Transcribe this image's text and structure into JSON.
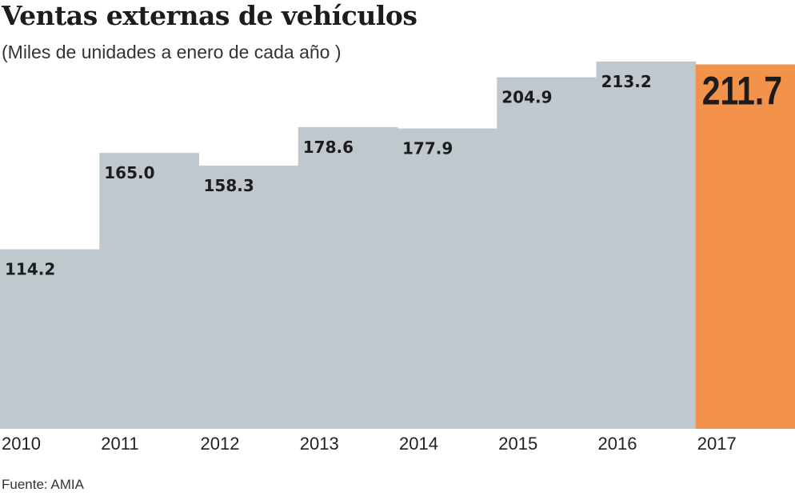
{
  "chart_data": {
    "type": "bar",
    "title": "Ventas externas de vehículos",
    "subtitle": "(Miles de unidades a enero de cada año )",
    "source": "Fuente: AMIA",
    "categories": [
      "2010",
      "2011",
      "2012",
      "2013",
      "2014",
      "2015",
      "2016",
      "2017"
    ],
    "values": [
      114.2,
      165.0,
      158.3,
      178.6,
      177.9,
      204.9,
      213.2,
      211.7
    ],
    "labels": [
      "114.2",
      "165.0",
      "158.3",
      "178.6",
      "177.9",
      "204.9",
      "213.2",
      "211.7"
    ],
    "highlight_index": 7,
    "colors": {
      "bar": "#bfc9cd",
      "highlight": "#f3934b",
      "text": "#1c1c1c"
    },
    "grid": false
  }
}
